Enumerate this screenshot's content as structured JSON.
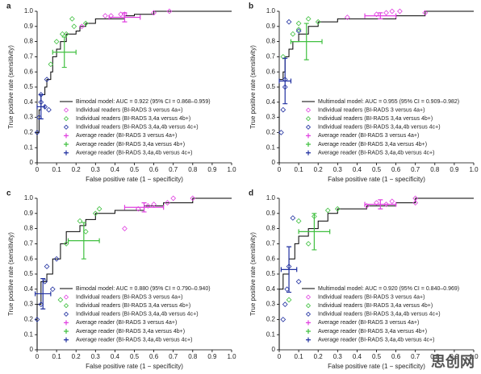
{
  "chart_data": [
    {
      "type": "roc",
      "label": "a",
      "xlabel": "False positive rate (1 − specificity)",
      "ylabel": "True positive rate (sensitivity)",
      "xlim": [
        0,
        1
      ],
      "ylim": [
        0,
        1
      ],
      "xticks": [
        0,
        0.1,
        0.2,
        0.3,
        0.4,
        0.5,
        0.6,
        0.7,
        0.8,
        0.9,
        {
          "value": 1,
          "label": "1.0"
        }
      ],
      "yticks": [
        0,
        0.1,
        0.2,
        0.3,
        0.4,
        0.5,
        0.6,
        0.7,
        0.8,
        0.9,
        {
          "value": 1,
          "label": "1.0"
        }
      ],
      "series": [
        {
          "name": "Bimodal model: AUC = 0.922 (95% CI = 0.868–0.959)",
          "color": "#000000",
          "style": "curve",
          "x": [
            0,
            0,
            0.01,
            0.01,
            0.02,
            0.02,
            0.04,
            0.04,
            0.05,
            0.05,
            0.07,
            0.07,
            0.08,
            0.08,
            0.1,
            0.1,
            0.12,
            0.12,
            0.15,
            0.15,
            0.2,
            0.2,
            0.22,
            0.22,
            0.25,
            0.25,
            0.3,
            0.3,
            0.45,
            0.45,
            0.5,
            0.5,
            0.6,
            0.6,
            1
          ],
          "y": [
            0,
            0.2,
            0.2,
            0.35,
            0.35,
            0.45,
            0.45,
            0.5,
            0.5,
            0.55,
            0.55,
            0.6,
            0.6,
            0.7,
            0.7,
            0.75,
            0.75,
            0.8,
            0.8,
            0.85,
            0.85,
            0.87,
            0.87,
            0.9,
            0.9,
            0.92,
            0.92,
            0.95,
            0.95,
            0.97,
            0.97,
            0.98,
            0.98,
            1,
            1
          ]
        },
        {
          "name": "Individual readers (BI-RADS 3 versus 4a+)",
          "color": "#e040e0",
          "style": "diamond",
          "x": [
            0.23,
            0.35,
            0.38,
            0.43,
            0.45,
            0.6,
            0.68
          ],
          "y": [
            0.9,
            0.97,
            0.97,
            0.98,
            0.98,
            0.99,
            1
          ]
        },
        {
          "name": "Individual readers (BI-RADS 3,4a versus 4b+)",
          "color": "#40c040",
          "style": "diamond",
          "x": [
            0.07,
            0.1,
            0.13,
            0.15,
            0.18,
            0.19,
            0.25
          ],
          "y": [
            0.65,
            0.8,
            0.85,
            0.85,
            0.95,
            0.9,
            0.92
          ]
        },
        {
          "name": "Individual readers (BI-RADS 3,4a,4b versus 4c+)",
          "color": "#2030a0",
          "style": "diamond",
          "x": [
            0,
            0.01,
            0.02,
            0.02,
            0.04,
            0.05,
            0.06
          ],
          "y": [
            0.2,
            0.3,
            0.4,
            0.45,
            0.37,
            0.55,
            0.35
          ]
        },
        {
          "name": "Average reader (BI-RADS 3 versus 4a+)",
          "color": "#e040e0",
          "style": "average",
          "x": [
            0.45
          ],
          "y": [
            0.96
          ],
          "x_err": [
            0.08
          ],
          "y_err": [
            0.03
          ]
        },
        {
          "name": "Average reader (BI-RADS 3,4a versus 4b+)",
          "color": "#40c040",
          "style": "average",
          "x": [
            0.14
          ],
          "y": [
            0.73
          ],
          "x_err": [
            0.06
          ],
          "y_err": [
            0.1
          ]
        },
        {
          "name": "Average reader (BI-RADS 3,4a,4b versus 4c+)",
          "color": "#2030a0",
          "style": "average",
          "x": [
            0.02
          ],
          "y": [
            0.37
          ],
          "x_err": [
            0.02
          ],
          "y_err": [
            0.08
          ]
        }
      ]
    },
    {
      "type": "roc",
      "label": "b",
      "xlabel": "False positive rate (1 − specificity)",
      "ylabel": "True positive rate (sensitivity)",
      "xlim": [
        0,
        1
      ],
      "ylim": [
        0,
        1
      ],
      "xticks": [
        0,
        0.1,
        0.2,
        0.3,
        0.4,
        0.5,
        0.6,
        0.7,
        0.8,
        0.9,
        {
          "value": 1,
          "label": "1.0"
        }
      ],
      "yticks": [
        0,
        0.1,
        0.2,
        0.3,
        0.4,
        0.5,
        0.6,
        0.7,
        0.8,
        0.9,
        {
          "value": 1,
          "label": "1.0"
        }
      ],
      "series": [
        {
          "name": "Multimodal model: AUC = 0.955 (95% CI = 0.909–0.982)",
          "color": "#000000",
          "style": "curve",
          "x": [
            0,
            0,
            0.02,
            0.02,
            0.03,
            0.03,
            0.05,
            0.05,
            0.07,
            0.07,
            0.1,
            0.1,
            0.15,
            0.15,
            0.2,
            0.2,
            0.3,
            0.3,
            0.6,
            0.6,
            0.75,
            0.75,
            1
          ],
          "y": [
            0,
            0.55,
            0.55,
            0.6,
            0.6,
            0.7,
            0.7,
            0.75,
            0.75,
            0.8,
            0.8,
            0.85,
            0.85,
            0.9,
            0.9,
            0.93,
            0.93,
            0.95,
            0.95,
            0.97,
            0.97,
            1,
            1
          ]
        },
        {
          "name": "Individual readers (BI-RADS 3 versus 4a+)",
          "color": "#e040e0",
          "style": "diamond",
          "x": [
            0.35,
            0.5,
            0.55,
            0.58,
            0.62,
            0.75
          ],
          "y": [
            0.96,
            0.98,
            0.99,
            1,
            1,
            0.99
          ]
        },
        {
          "name": "Individual readers (BI-RADS 3,4a versus 4b+)",
          "color": "#40c040",
          "style": "diamond",
          "x": [
            0.02,
            0.07,
            0.1,
            0.1,
            0.15,
            0.2
          ],
          "y": [
            0.7,
            0.85,
            0.88,
            0.92,
            0.95,
            0.93
          ]
        },
        {
          "name": "Individual readers (BI-RADS 3,4a,4b versus 4c+)",
          "color": "#2030a0",
          "style": "diamond",
          "x": [
            0.01,
            0.02,
            0.03,
            0.03,
            0.05,
            0.1
          ],
          "y": [
            0.2,
            0.35,
            0.5,
            0.55,
            0.93,
            0.87
          ]
        },
        {
          "name": "Average reader (BI-RADS 3 versus 4a+)",
          "color": "#e040e0",
          "style": "average",
          "x": [
            0.52
          ],
          "y": [
            0.97
          ],
          "x_err": [
            0.08
          ],
          "y_err": [
            0.02
          ]
        },
        {
          "name": "Average reader (BI-RADS 3,4a versus 4b+)",
          "color": "#40c040",
          "style": "average",
          "x": [
            0.14
          ],
          "y": [
            0.8
          ],
          "x_err": [
            0.08
          ],
          "y_err": [
            0.12
          ]
        },
        {
          "name": "Average reader (BI-RADS 3,4a,4b versus 4c+)",
          "color": "#2030a0",
          "style": "average",
          "x": [
            0.03
          ],
          "y": [
            0.54
          ],
          "x_err": [
            0.03
          ],
          "y_err": [
            0.15
          ]
        }
      ]
    },
    {
      "type": "roc",
      "label": "c",
      "xlabel": "False positive rate (1 − specificity)",
      "ylabel": "True positive rate (sensitivity)",
      "xlim": [
        0,
        1
      ],
      "ylim": [
        0,
        1
      ],
      "xticks": [
        0,
        0.1,
        0.2,
        0.3,
        0.4,
        0.5,
        0.6,
        0.7,
        0.8,
        0.9,
        {
          "value": 1,
          "label": "1.0"
        }
      ],
      "yticks": [
        0,
        0.1,
        0.2,
        0.3,
        0.4,
        0.5,
        0.6,
        0.7,
        0.8,
        0.9,
        {
          "value": 1,
          "label": "1.0"
        }
      ],
      "series": [
        {
          "name": "Bimodal model: AUC = 0.880 (95% CI = 0.790–0.940)",
          "color": "#000000",
          "style": "curve",
          "x": [
            0,
            0,
            0.02,
            0.02,
            0.05,
            0.05,
            0.08,
            0.08,
            0.12,
            0.12,
            0.15,
            0.15,
            0.22,
            0.22,
            0.25,
            0.25,
            0.3,
            0.3,
            0.4,
            0.4,
            0.55,
            0.55,
            0.65,
            0.65,
            0.8,
            0.8,
            1
          ],
          "y": [
            0,
            0.3,
            0.3,
            0.45,
            0.45,
            0.5,
            0.5,
            0.6,
            0.6,
            0.7,
            0.7,
            0.78,
            0.78,
            0.82,
            0.82,
            0.86,
            0.86,
            0.9,
            0.9,
            0.92,
            0.92,
            0.95,
            0.95,
            0.97,
            0.97,
            1,
            1
          ]
        },
        {
          "name": "Individual readers (BI-RADS 3 versus 4a+)",
          "color": "#e040e0",
          "style": "diamond",
          "x": [
            0.45,
            0.52,
            0.57,
            0.6,
            0.67,
            0.7,
            0.8
          ],
          "y": [
            0.8,
            0.93,
            0.95,
            0.96,
            0.97,
            1,
            1
          ]
        },
        {
          "name": "Individual readers (BI-RADS 3,4a versus 4b+)",
          "color": "#40c040",
          "style": "diamond",
          "x": [
            0.12,
            0.15,
            0.22,
            0.25,
            0.3,
            0.32
          ],
          "y": [
            0.33,
            0.7,
            0.85,
            0.78,
            0.9,
            0.93
          ]
        },
        {
          "name": "Individual readers (BI-RADS 3,4a,4b versus 4c+)",
          "color": "#2030a0",
          "style": "diamond",
          "x": [
            0,
            0.02,
            0.04,
            0.05,
            0.08,
            0.1
          ],
          "y": [
            0.2,
            0.3,
            0.45,
            0.55,
            0.4,
            0.6
          ]
        },
        {
          "name": "Average reader (BI-RADS 3 versus 4a+)",
          "color": "#e040e0",
          "style": "average",
          "x": [
            0.55
          ],
          "y": [
            0.94
          ],
          "x_err": [
            0.1
          ],
          "y_err": [
            0.03
          ]
        },
        {
          "name": "Average reader (BI-RADS 3,4a versus 4b+)",
          "color": "#40c040",
          "style": "average",
          "x": [
            0.24
          ],
          "y": [
            0.72
          ],
          "x_err": [
            0.08
          ],
          "y_err": [
            0.12
          ]
        },
        {
          "name": "Average reader (BI-RADS 3,4a,4b versus 4c+)",
          "color": "#2030a0",
          "style": "average",
          "x": [
            0.03
          ],
          "y": [
            0.37
          ],
          "x_err": [
            0.04
          ],
          "y_err": [
            0.1
          ]
        }
      ]
    },
    {
      "type": "roc",
      "label": "d",
      "xlabel": "False positive rate (1 − specificity)",
      "ylabel": "True positive rate (sensitivity)",
      "xlim": [
        0,
        1
      ],
      "ylim": [
        0,
        1
      ],
      "xticks": [
        0,
        0.1,
        0.2,
        0.3,
        0.4,
        0.5,
        0.6,
        0.7,
        0.8,
        0.9,
        {
          "value": 1,
          "label": "1.0"
        }
      ],
      "yticks": [
        0,
        0.1,
        0.2,
        0.3,
        0.4,
        0.5,
        0.6,
        0.7,
        0.8,
        0.9,
        {
          "value": 1,
          "label": "1.0"
        }
      ],
      "series": [
        {
          "name": "Multimodal model: AUC = 0.920 (95% CI = 0.840–0.969)",
          "color": "#000000",
          "style": "curve",
          "x": [
            0,
            0,
            0.02,
            0.02,
            0.05,
            0.05,
            0.08,
            0.08,
            0.1,
            0.1,
            0.15,
            0.15,
            0.2,
            0.2,
            0.25,
            0.25,
            0.3,
            0.3,
            0.45,
            0.45,
            0.6,
            0.6,
            0.7,
            0.7,
            1
          ],
          "y": [
            0,
            0.4,
            0.4,
            0.5,
            0.5,
            0.6,
            0.6,
            0.7,
            0.7,
            0.75,
            0.75,
            0.8,
            0.8,
            0.85,
            0.85,
            0.9,
            0.9,
            0.93,
            0.93,
            0.95,
            0.95,
            0.97,
            0.97,
            1,
            1
          ]
        },
        {
          "name": "Individual readers (BI-RADS 3 versus 4a+)",
          "color": "#e040e0",
          "style": "diamond",
          "x": [
            0.45,
            0.5,
            0.55,
            0.58,
            0.7,
            0.7
          ],
          "y": [
            0.95,
            0.97,
            0.96,
            0.98,
            0.97,
            1
          ]
        },
        {
          "name": "Individual readers (BI-RADS 3,4a versus 4b+)",
          "color": "#40c040",
          "style": "diamond",
          "x": [
            0.05,
            0.1,
            0.15,
            0.18,
            0.25,
            0.3
          ],
          "y": [
            0.33,
            0.85,
            0.7,
            0.88,
            0.92,
            0.93
          ]
        },
        {
          "name": "Individual readers (BI-RADS 3,4a,4b versus 4c+)",
          "color": "#2030a0",
          "style": "diamond",
          "x": [
            0.02,
            0.03,
            0.04,
            0.05,
            0.07,
            0.1
          ],
          "y": [
            0.2,
            0.3,
            0.4,
            0.55,
            0.87,
            0.45
          ]
        },
        {
          "name": "Average reader (BI-RADS 3 versus 4a+)",
          "color": "#e040e0",
          "style": "average",
          "x": [
            0.52
          ],
          "y": [
            0.96
          ],
          "x_err": [
            0.08
          ],
          "y_err": [
            0.03
          ]
        },
        {
          "name": "Average reader (BI-RADS 3,4a versus 4b+)",
          "color": "#40c040",
          "style": "average",
          "x": [
            0.18
          ],
          "y": [
            0.78
          ],
          "x_err": [
            0.08
          ],
          "y_err": [
            0.12
          ]
        },
        {
          "name": "Average reader (BI-RADS 3,4a,4b versus 4c+)",
          "color": "#2030a0",
          "style": "average",
          "x": [
            0.05
          ],
          "y": [
            0.53
          ],
          "x_err": [
            0.04
          ],
          "y_err": [
            0.15
          ]
        }
      ]
    }
  ],
  "watermark": "思创网"
}
